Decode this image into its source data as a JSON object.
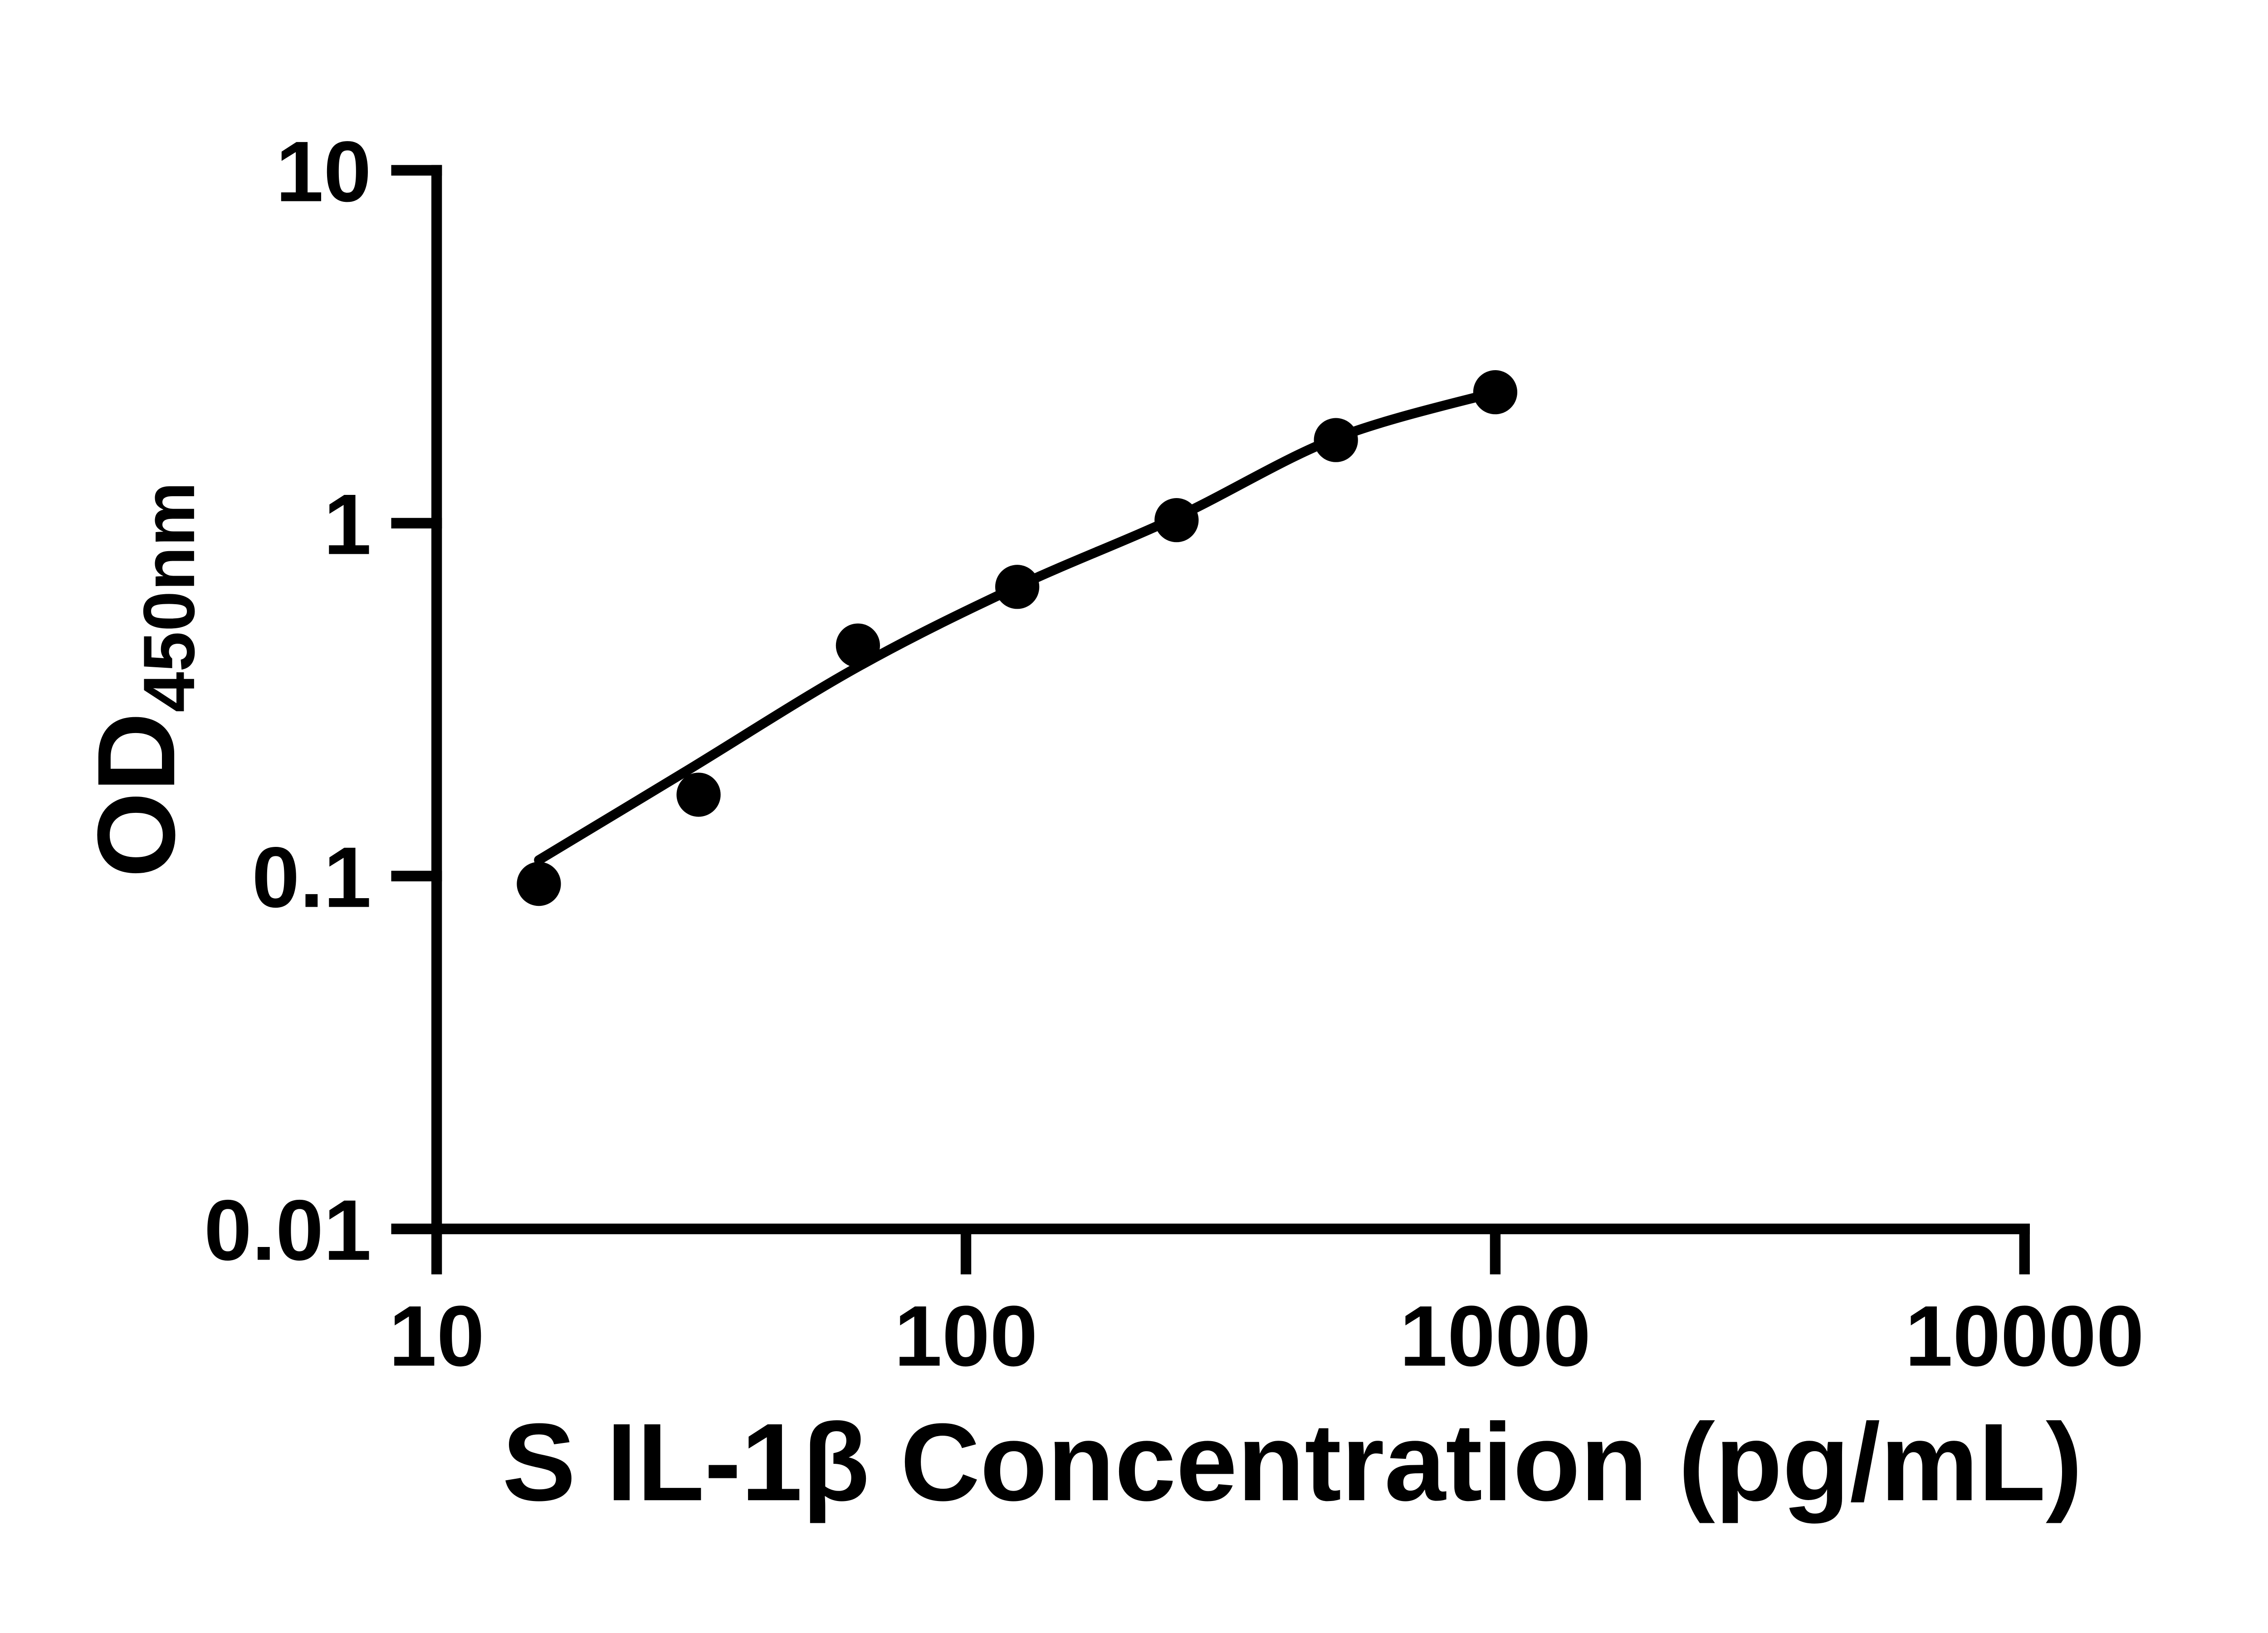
{
  "page": {
    "background": "#ffffff"
  },
  "colors": {
    "foreground": "#000000",
    "background": "#ffffff"
  },
  "chart_data": {
    "type": "scatter",
    "title": "",
    "xlabel": "S IL-1β Concentration (pg/mL)",
    "ylabel_main": "OD",
    "ylabel_sub": "450nm",
    "x_scale": "log",
    "y_scale": "log",
    "xlim": [
      10,
      10000
    ],
    "ylim": [
      0.01,
      10
    ],
    "grid": false,
    "legend": "none",
    "x_ticks": [
      {
        "value": 10,
        "label": "10"
      },
      {
        "value": 100,
        "label": "100"
      },
      {
        "value": 1000,
        "label": "1000"
      },
      {
        "value": 10000,
        "label": "10000"
      }
    ],
    "y_ticks": [
      {
        "value": 10,
        "label": "10"
      },
      {
        "value": 1,
        "label": "1"
      },
      {
        "value": 0.1,
        "label": "0.1"
      },
      {
        "value": 0.01,
        "label": "0.01"
      }
    ],
    "series": [
      {
        "name": "standard-points",
        "type": "scatter",
        "marker": "circle",
        "color": "#000000",
        "points": [
          {
            "x": 15.6,
            "y": 0.095
          },
          {
            "x": 31.25,
            "y": 0.17
          },
          {
            "x": 62.5,
            "y": 0.45
          },
          {
            "x": 125,
            "y": 0.66
          },
          {
            "x": 250,
            "y": 1.02
          },
          {
            "x": 500,
            "y": 1.72
          },
          {
            "x": 1000,
            "y": 2.35
          }
        ]
      },
      {
        "name": "fit-curve",
        "type": "line",
        "color": "#000000",
        "points": [
          {
            "x": 15.6,
            "y": 0.111
          },
          {
            "x": 29.4,
            "y": 0.197
          },
          {
            "x": 62.2,
            "y": 0.39
          },
          {
            "x": 124.6,
            "y": 0.66
          },
          {
            "x": 250,
            "y": 1.04
          },
          {
            "x": 499,
            "y": 1.74
          },
          {
            "x": 1000,
            "y": 2.35
          }
        ]
      }
    ]
  }
}
